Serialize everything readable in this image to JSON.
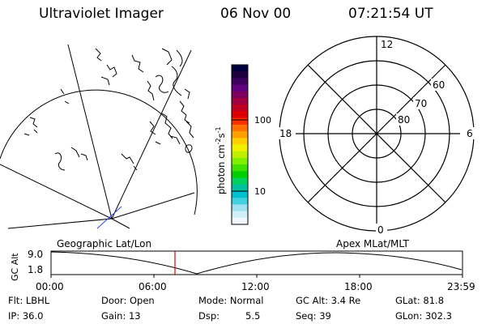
{
  "header": {
    "title": "Ultraviolet Imager",
    "date": "06 Nov 00",
    "time": "07:21:54 UT"
  },
  "colorbar": {
    "unit_label": "photon cm",
    "unit_sup1": "-2",
    "unit_mid": "s",
    "unit_sup2": "-1",
    "ticks": [
      "100",
      "10"
    ],
    "colors": [
      "#000040",
      "#200040",
      "#400060",
      "#600080",
      "#800060",
      "#a00040",
      "#c00020",
      "#e00000",
      "#ff3000",
      "#ff7000",
      "#ffa000",
      "#ffd000",
      "#f0f000",
      "#c0f000",
      "#80f000",
      "#40e000",
      "#00d000",
      "#00d060",
      "#00c0a0",
      "#00c0d0",
      "#40d0e0",
      "#a0e0f0",
      "#d0f0f8",
      "#f0f8ff"
    ]
  },
  "polar": {
    "labels": {
      "top": "12",
      "left": "18",
      "right": "6",
      "bottom": "0"
    },
    "rings": [
      "60",
      "70",
      "80"
    ]
  },
  "maps": {
    "left_label": "Geographic Lat/Lon",
    "right_label": "Apex MLat/MLT"
  },
  "timeline": {
    "ylabel": "GC Alt",
    "ymax": "9.0",
    "ymin": "1.8",
    "ticks": [
      "00:00",
      "06:00",
      "12:00",
      "18:00",
      "23:59"
    ],
    "marker_color": "#e00000"
  },
  "footer": {
    "filter": "Flt: LBHL",
    "ip": "IP: 36.0",
    "door": "Door: Open",
    "gain": "Gain: 13",
    "mode": "Mode: Normal",
    "dsp": "Dsp:",
    "dsp_val": "5.5",
    "gcalt": "GC Alt: 3.4 Re",
    "seq": "Seq: 39",
    "glat": "GLat: 81.8",
    "glon": "GLon: 302.3"
  }
}
